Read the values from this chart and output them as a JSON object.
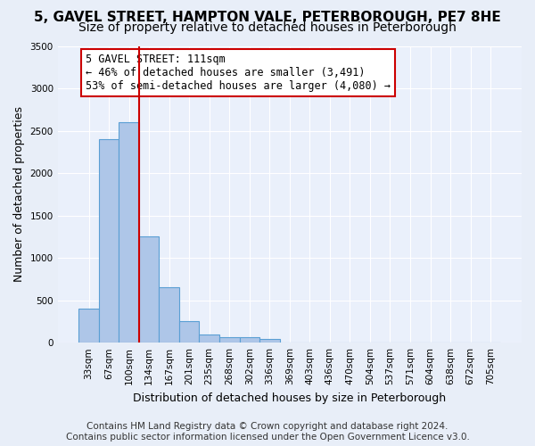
{
  "title_line1": "5, GAVEL STREET, HAMPTON VALE, PETERBOROUGH, PE7 8HE",
  "title_line2": "Size of property relative to detached houses in Peterborough",
  "xlabel": "Distribution of detached houses by size in Peterborough",
  "ylabel": "Number of detached properties",
  "bin_labels": [
    "33sqm",
    "67sqm",
    "100sqm",
    "134sqm",
    "167sqm",
    "201sqm",
    "235sqm",
    "268sqm",
    "302sqm",
    "336sqm",
    "369sqm",
    "403sqm",
    "436sqm",
    "470sqm",
    "504sqm",
    "537sqm",
    "571sqm",
    "604sqm",
    "638sqm",
    "672sqm",
    "705sqm"
  ],
  "bar_values": [
    400,
    2400,
    2600,
    1250,
    650,
    250,
    100,
    60,
    60,
    40,
    5,
    5,
    2,
    2,
    1,
    1,
    1,
    0,
    0,
    0,
    0
  ],
  "bar_color": "#aec6e8",
  "bar_edgecolor": "#5a9fd4",
  "bar_linewidth": 0.8,
  "red_line_bin": 2,
  "annotation_line1": "5 GAVEL STREET: 111sqm",
  "annotation_line2": "← 46% of detached houses are smaller (3,491)",
  "annotation_line3": "53% of semi-detached houses are larger (4,080) →",
  "annotation_box_color": "#ffffff",
  "annotation_box_edgecolor": "#cc0000",
  "vline_color": "#cc0000",
  "vline_linewidth": 1.5,
  "ylim": [
    0,
    3500
  ],
  "yticks": [
    0,
    500,
    1000,
    1500,
    2000,
    2500,
    3000,
    3500
  ],
  "bg_color": "#e8eef8",
  "plot_bg_color": "#eaf0fb",
  "grid_color": "#ffffff",
  "footer_line1": "Contains HM Land Registry data © Crown copyright and database right 2024.",
  "footer_line2": "Contains public sector information licensed under the Open Government Licence v3.0.",
  "title_fontsize": 11,
  "subtitle_fontsize": 10,
  "axis_label_fontsize": 9,
  "tick_fontsize": 7.5,
  "annotation_fontsize": 8.5,
  "footer_fontsize": 7.5
}
